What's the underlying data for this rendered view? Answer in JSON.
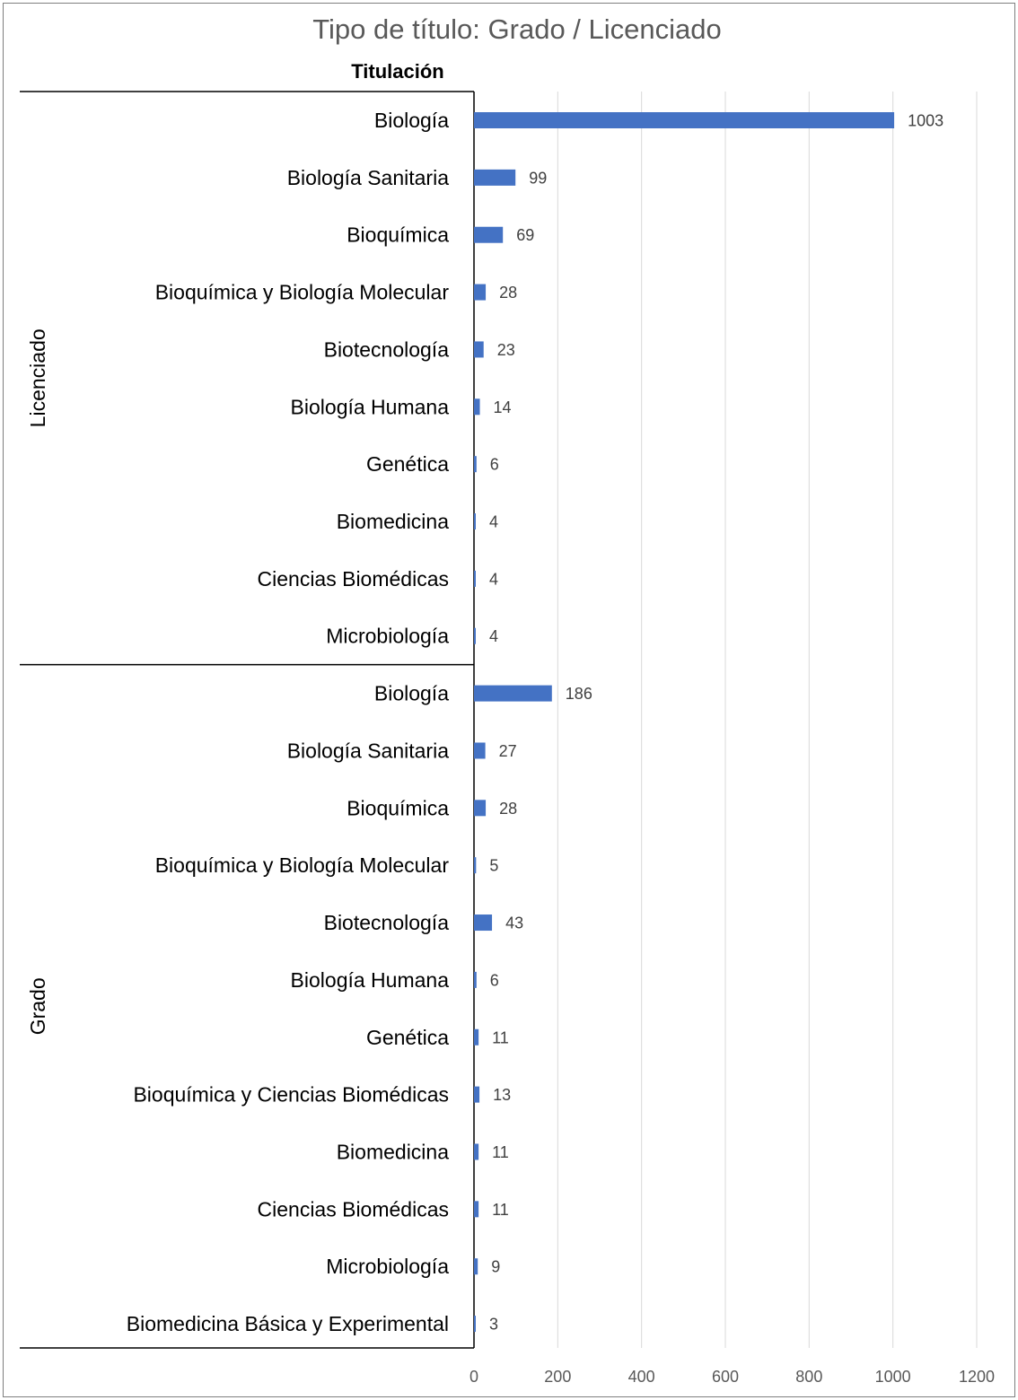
{
  "chart_data": {
    "type": "bar",
    "orientation": "horizontal",
    "title": "Tipo de título: Grado / Licenciado",
    "row_header": "Titulación",
    "xlim": [
      0,
      1200
    ],
    "xticks": [
      0,
      200,
      400,
      600,
      800,
      1000,
      1200
    ],
    "grid": true,
    "legend": "none",
    "bar_color": "#4472C4",
    "groups": [
      {
        "name": "Licenciado",
        "categories": [
          "Biología",
          "Biología Sanitaria",
          "Bioquímica",
          "Bioquímica y Biología Molecular",
          "Biotecnología",
          "Biología Humana",
          "Genética",
          "Biomedicina",
          "Ciencias Biomédicas",
          "Microbiología"
        ],
        "values": [
          1003,
          99,
          69,
          28,
          23,
          14,
          6,
          4,
          4,
          4
        ]
      },
      {
        "name": "Grado",
        "categories": [
          "Biología",
          "Biología Sanitaria",
          "Bioquímica",
          "Bioquímica y Biología Molecular",
          "Biotecnología",
          "Biología Humana",
          "Genética",
          "Bioquímica y Ciencias Biomédicas",
          "Biomedicina",
          "Ciencias Biomédicas",
          "Microbiología",
          "Biomedicina Básica y Experimental"
        ],
        "values": [
          186,
          27,
          28,
          5,
          43,
          6,
          11,
          13,
          11,
          11,
          9,
          3
        ]
      }
    ]
  }
}
